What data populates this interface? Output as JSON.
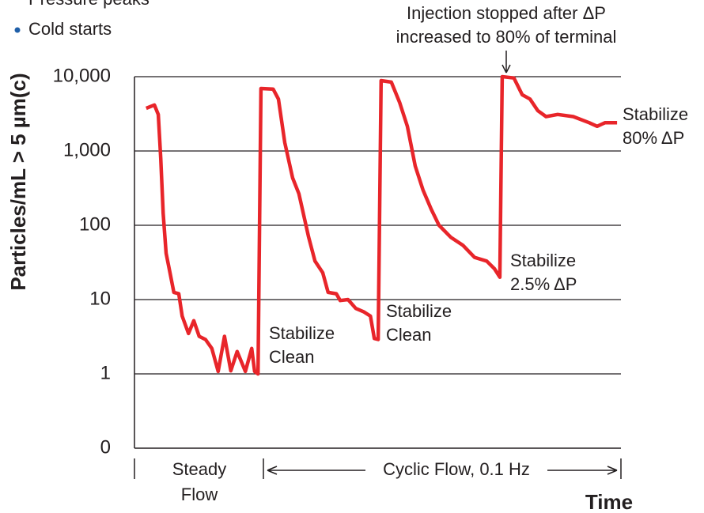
{
  "chart_data": {
    "type": "line",
    "bullets": [
      "Pressure peaks",
      "Cold starts"
    ],
    "ylabel": "Particles/mL > 5 µm(c)",
    "xlabel": "Time",
    "log_y": true,
    "grid": true,
    "ylim": [
      0.1,
      10000
    ],
    "yticks": [
      {
        "value": 0.1,
        "label": "0"
      },
      1,
      10,
      100,
      {
        "value": 1000,
        "label": "1,000"
      },
      {
        "value": 10000,
        "label": "10,000"
      }
    ],
    "xlim": [
      0,
      100
    ],
    "x": [
      2.4,
      4.1,
      4.9,
      5.4,
      5.9,
      6.5,
      7.3,
      8.1,
      9.1,
      9.8,
      11.1,
      12.2,
      13.3,
      14.6,
      15.9,
      17.2,
      18.5,
      19.8,
      21.1,
      22.8,
      24.1,
      24.7,
      25.4,
      26.0,
      28.5,
      29.6,
      30.9,
      32.5,
      33.8,
      35.8,
      37.1,
      38.7,
      39.8,
      41.5,
      42.3,
      43.9,
      45.5,
      47.2,
      48.5,
      49.3,
      50.1,
      50.7,
      52.8,
      54.5,
      56.1,
      57.7,
      59.3,
      61.0,
      62.6,
      65.0,
      67.5,
      69.9,
      72.4,
      74.0,
      75.1,
      75.6,
      78.0,
      79.7,
      81.3,
      82.9,
      84.6,
      87.0,
      90.2,
      93.5,
      95.1,
      96.7,
      99.2
    ],
    "series": [
      {
        "color": "#e8252a",
        "values": [
          3750,
          4160,
          3090,
          800,
          144,
          42,
          23,
          12.5,
          12,
          6,
          3.5,
          5.2,
          3.2,
          2.9,
          2.2,
          1.08,
          3.2,
          1.1,
          2,
          1.08,
          2.2,
          1.08,
          1,
          6920,
          6800,
          5000,
          1300,
          435,
          265,
          69,
          33,
          23,
          12.5,
          12,
          9.7,
          10,
          7.6,
          6.8,
          6,
          3,
          2.9,
          8850,
          8450,
          4500,
          2150,
          630,
          300,
          165,
          100,
          69,
          54,
          37,
          33,
          26,
          20,
          10000,
          9600,
          5700,
          5000,
          3500,
          2900,
          3100,
          2900,
          2400,
          2150,
          2400,
          2400
        ]
      }
    ],
    "annotations": [
      {
        "lines": [
          "Injection stopped after ΔP",
          "increased to 80% of terminal"
        ]
      },
      {
        "lines": [
          "Stabilize",
          "80% ΔP"
        ]
      },
      {
        "lines": [
          "Stabilize",
          "Clean"
        ]
      },
      {
        "lines": [
          "Stabilize",
          "Clean"
        ]
      },
      {
        "lines": [
          "Stabilize",
          "2.5% ΔP"
        ]
      }
    ],
    "phases": [
      {
        "lines": [
          "Steady",
          "Flow"
        ]
      },
      {
        "lines": [
          "Cyclic Flow, 0.1 Hz"
        ]
      }
    ]
  }
}
